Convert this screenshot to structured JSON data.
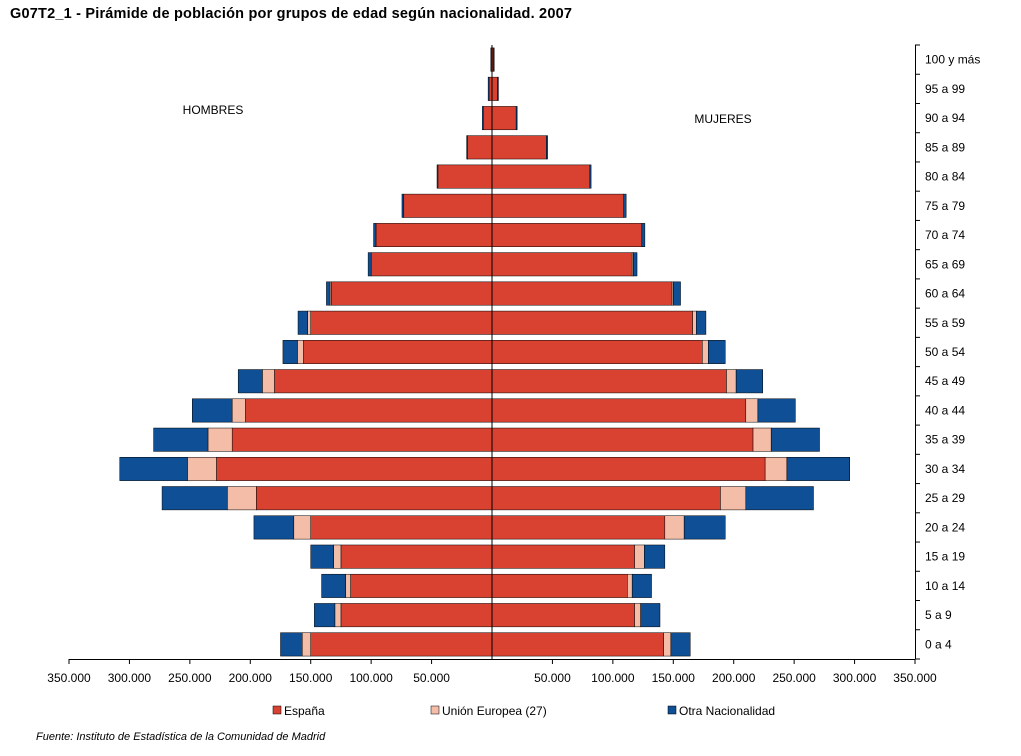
{
  "title": "G07T2_1 - Pirámide de población por grupos de edad según nacionalidad. 2007",
  "source": "Fuente: Instituto de Estadística de la Comunidad de Madrid",
  "colors": {
    "espana": "#D94131",
    "ue": "#F4BDA8",
    "otra": "#0E4F95"
  },
  "chart_data": {
    "type": "bar",
    "orientation": "horizontal-pyramid",
    "side_labels": {
      "left": "HOMBRES",
      "right": "MUJERES"
    },
    "categories": [
      "100 y más",
      "95 a 99",
      "90 a 94",
      "85 a 89",
      "80 a 84",
      "75 a 79",
      "70 a 74",
      "65 a 69",
      "60 a 64",
      "55 a 59",
      "50 a 54",
      "45 a 49",
      "40 a 44",
      "35 a 39",
      "30 a 34",
      "25 a 29",
      "20 a 24",
      "15 a 19",
      "10 a 14",
      "5 a 9",
      "0 a 4"
    ],
    "xlim": [
      -350000,
      350000
    ],
    "x_ticks": [
      -350000,
      -300000,
      -250000,
      -200000,
      -150000,
      -100000,
      -50000,
      50000,
      100000,
      150000,
      200000,
      250000,
      300000,
      350000
    ],
    "x_tick_labels": [
      "350.000",
      "300.000",
      "250.000",
      "200.000",
      "150.000",
      "100.000",
      "50.000",
      "50.000",
      "100.000",
      "150.000",
      "200.000",
      "250.000",
      "300.000",
      "350.000"
    ],
    "legend_position": "bottom",
    "series": [
      {
        "name": "España",
        "color_key": "espana",
        "hombres": [
          500,
          2700,
          7500,
          20500,
          45000,
          73000,
          96000,
          100000,
          133000,
          150000,
          156000,
          180000,
          204000,
          215000,
          228000,
          195000,
          150000,
          125000,
          117000,
          125000,
          150000
        ],
        "mujeres": [
          1000,
          4500,
          20000,
          45000,
          81000,
          109000,
          124000,
          116000,
          149000,
          166000,
          174000,
          194000,
          210000,
          216000,
          226000,
          189000,
          143000,
          118000,
          112000,
          118000,
          142000
        ]
      },
      {
        "name": "Unión Europea (27)",
        "color_key": "ue",
        "hombres": [
          0,
          0,
          0,
          0,
          0,
          0,
          0,
          0,
          1000,
          2500,
          5000,
          10000,
          11000,
          20000,
          24000,
          24000,
          14000,
          6000,
          4000,
          5000,
          7000
        ],
        "mujeres": [
          0,
          0,
          0,
          0,
          0,
          0,
          0,
          1000,
          1000,
          3000,
          5000,
          8000,
          10000,
          15000,
          18000,
          21000,
          16000,
          8000,
          4000,
          5000,
          6000
        ]
      },
      {
        "name": "Otra Nacionalidad",
        "color_key": "otra",
        "hombres": [
          500,
          500,
          500,
          500,
          500,
          1500,
          2000,
          2500,
          3000,
          8000,
          12000,
          20000,
          33000,
          45000,
          56000,
          54000,
          33000,
          19000,
          20000,
          17000,
          18000
        ],
        "mujeres": [
          500,
          500,
          500,
          1000,
          1000,
          2000,
          2500,
          3000,
          6000,
          8000,
          14000,
          22000,
          31000,
          40000,
          52000,
          56000,
          34000,
          17000,
          16000,
          16000,
          16000
        ]
      }
    ]
  }
}
